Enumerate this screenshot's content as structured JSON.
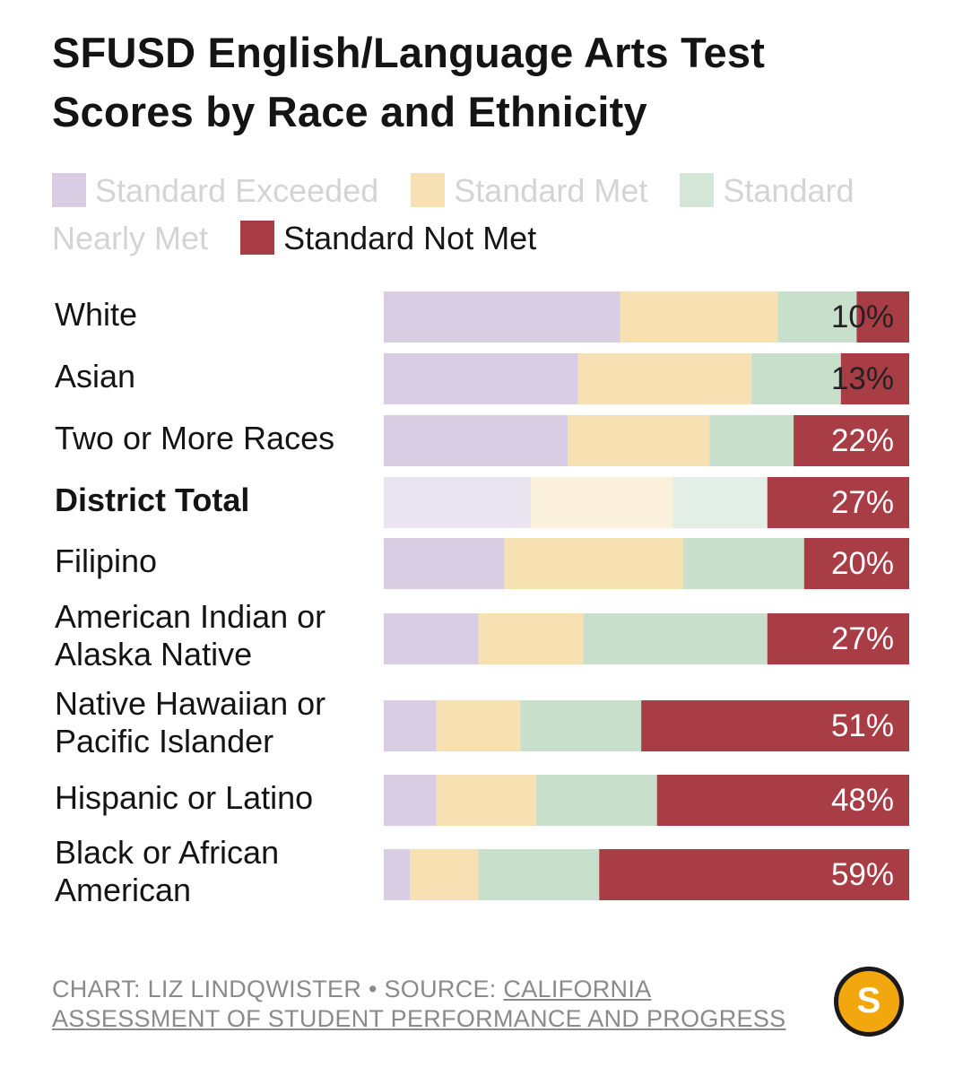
{
  "title": "SFUSD English/Language Arts Test Scores by Race and Ethnicity",
  "legend": [
    {
      "label": "Standard Exceeded",
      "color": "#d8cde3",
      "active": false
    },
    {
      "label": "Standard Met",
      "color": "#f7e0b1",
      "active": false
    },
    {
      "label": "Standard Nearly Met",
      "color": "#d4e6d8",
      "active": false
    },
    {
      "label": "Standard Not Met",
      "color": "#a93d45",
      "active": true
    }
  ],
  "colors": {
    "exceeded": "#d8cde3",
    "met": "#f7e0b1",
    "nearly_met": "#c8dfcc",
    "not_met": "#a93d45",
    "total_exceeded": "#ebe5f1",
    "total_met": "#fbf0db",
    "total_nearly_met": "#e3efe6"
  },
  "chart_data": {
    "type": "bar",
    "orientation": "horizontal",
    "stacked": true,
    "percent": true,
    "title": "SFUSD English/Language Arts Test Scores by Race and Ethnicity",
    "categories": [
      "White",
      "Asian",
      "Two or More Races",
      "District Total",
      "Filipino",
      "American Indian or Alaska Native",
      "Native Hawaiian or Pacific Islander",
      "Hispanic or Latino",
      "Black or African American"
    ],
    "highlight_category": "District Total",
    "series": [
      {
        "name": "Standard Exceeded",
        "values": [
          45,
          37,
          35,
          28,
          23,
          18,
          10,
          10,
          5
        ]
      },
      {
        "name": "Standard Met",
        "values": [
          30,
          33,
          27,
          27,
          34,
          20,
          16,
          19,
          13
        ]
      },
      {
        "name": "Standard Nearly Met",
        "values": [
          15,
          17,
          16,
          18,
          23,
          35,
          23,
          23,
          23
        ]
      },
      {
        "name": "Standard Not Met",
        "values": [
          10,
          13,
          22,
          27,
          20,
          27,
          51,
          48,
          59
        ]
      }
    ],
    "value_labels": [
      "10%",
      "13%",
      "22%",
      "27%",
      "20%",
      "27%",
      "51%",
      "48%",
      "59%"
    ],
    "xlim": [
      0,
      100
    ]
  },
  "footer": {
    "prefix": "CHART: LIZ LINDQWISTER • SOURCE: ",
    "source": "CALIFORNIA ASSESSMENT OF STUDENT PERFORMANCE AND PROGRESS"
  },
  "logo": {
    "letter": "S",
    "icon": "sfstandard-logo-icon"
  }
}
